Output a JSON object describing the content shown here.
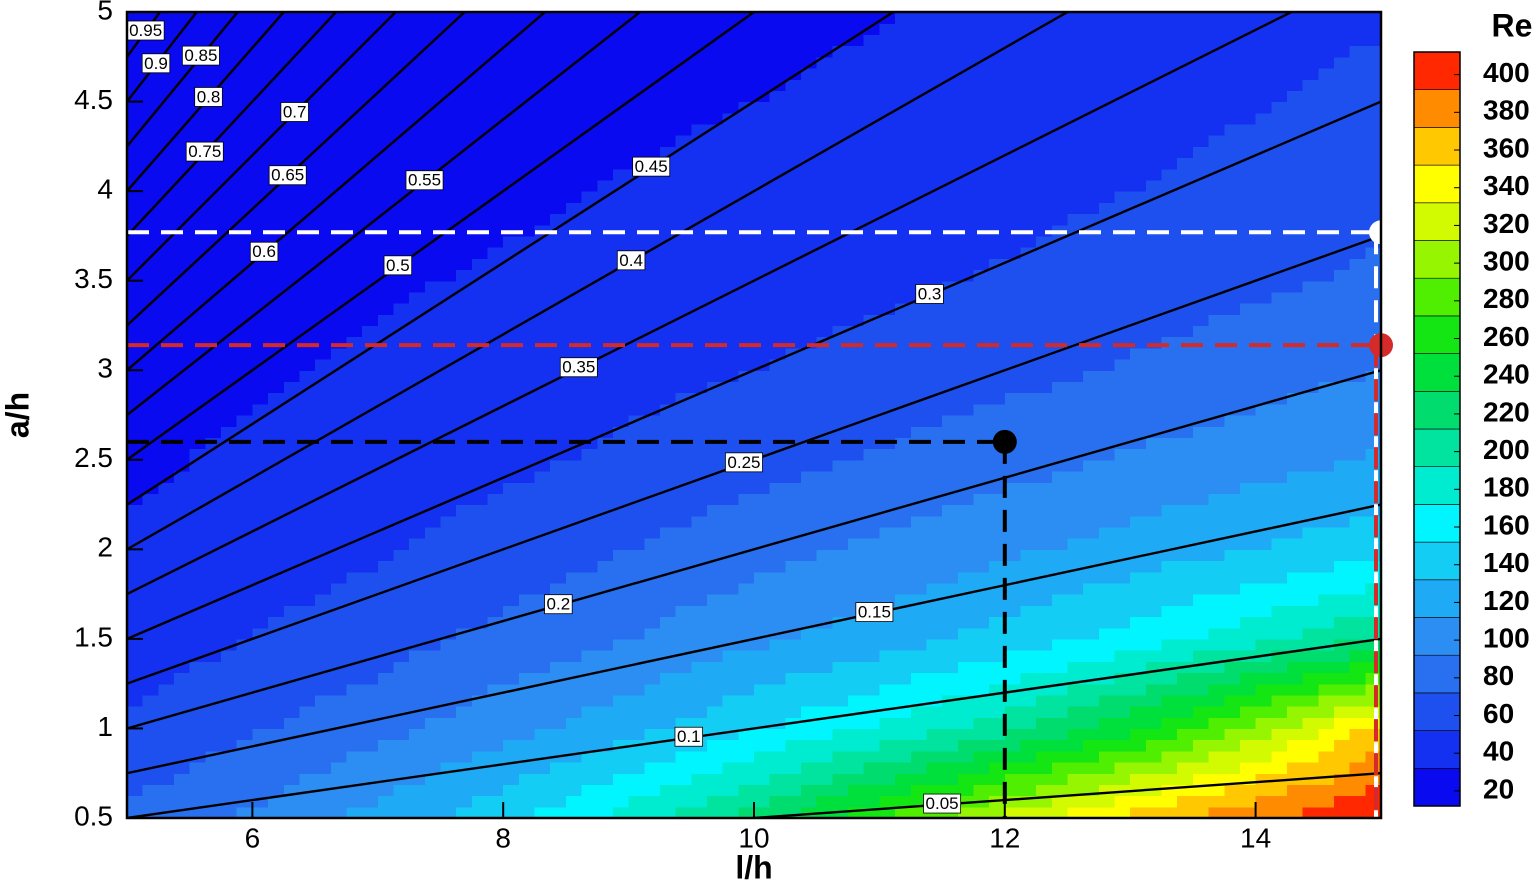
{
  "chart_data": {
    "type": "contour",
    "x_label": "l/h",
    "y_label": "a/h",
    "colorbar_title": "Re",
    "xlim": [
      5,
      15
    ],
    "ylim": [
      0.5,
      5
    ],
    "xticks": [
      6,
      8,
      10,
      12,
      14
    ],
    "yticks": [
      0.5,
      1,
      1.5,
      2,
      2.5,
      3,
      3.5,
      4,
      4.5,
      5
    ],
    "x": [
      5,
      6,
      7,
      8,
      9,
      10,
      11,
      12,
      13,
      14,
      15
    ],
    "y": [
      0.5,
      1,
      1.5,
      2,
      2.5,
      3,
      3.5,
      4,
      4.5,
      5
    ],
    "values": [
      [
        75,
        95,
        120,
        145,
        180,
        220,
        270,
        320,
        360,
        390,
        410
      ],
      [
        55,
        70,
        85,
        105,
        125,
        150,
        175,
        205,
        245,
        300,
        360
      ],
      [
        42,
        52,
        63,
        78,
        92,
        108,
        122,
        140,
        160,
        185,
        215
      ],
      [
        34,
        42,
        50,
        60,
        72,
        84,
        96,
        108,
        120,
        132,
        145
      ],
      [
        29,
        35,
        41,
        48,
        56,
        65,
        74,
        84,
        94,
        104,
        114
      ],
      [
        25,
        30,
        35,
        40,
        46,
        52,
        59,
        66,
        74,
        83,
        92
      ],
      [
        22,
        26,
        30,
        34,
        38,
        43,
        48,
        54,
        61,
        68,
        76
      ],
      [
        20,
        23,
        26,
        29,
        33,
        37,
        41,
        46,
        52,
        58,
        65
      ],
      [
        18,
        21,
        23,
        26,
        29,
        32,
        36,
        40,
        45,
        51,
        57
      ],
      [
        17,
        19,
        21,
        23,
        26,
        28,
        31,
        35,
        40,
        45,
        50
      ]
    ],
    "clim": [
      12,
      412
    ],
    "colorbar_ticks": [
      20,
      40,
      60,
      80,
      100,
      120,
      140,
      160,
      180,
      200,
      220,
      240,
      260,
      280,
      300,
      320,
      340,
      360,
      380,
      400
    ],
    "colors": [
      "#0a0af0",
      "#1430f0",
      "#1e50f0",
      "#2870f0",
      "#2c8ef2",
      "#1eaaf5",
      "#14cdf5",
      "#00f5ff",
      "#00ecd0",
      "#00e4a0",
      "#00dc6e",
      "#00e03c",
      "#14e614",
      "#50ee00",
      "#96f500",
      "#d2fa00",
      "#ffff00",
      "#ffc800",
      "#ff8c00",
      "#ff2800"
    ],
    "contour_levels": [
      0.05,
      0.1,
      0.15,
      0.2,
      0.25,
      0.3,
      0.35,
      0.4,
      0.45,
      0.5,
      0.55,
      0.6,
      0.65,
      0.7,
      0.75,
      0.8,
      0.85,
      0.9,
      0.95
    ],
    "markers": [
      {
        "x": 15,
        "y": 3.77,
        "color": "#ffffff"
      },
      {
        "x": 15,
        "y": 3.14,
        "color": "#d42a2a"
      },
      {
        "x": 12,
        "y": 2.6,
        "color": "#000000"
      }
    ]
  }
}
